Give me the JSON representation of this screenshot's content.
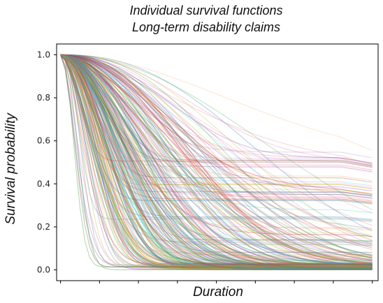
{
  "chart_data": {
    "type": "line",
    "title": "Individual survival functions",
    "subtitle": "Long-term disability claims",
    "xlabel": "Duration",
    "ylabel": "Survival probability",
    "ylim": [
      -0.05,
      1.05
    ],
    "y_ticks": [
      0.0,
      0.2,
      0.4,
      0.6,
      0.8,
      1.0
    ],
    "y_tick_labels": [
      "0.0",
      "0.2",
      "0.4",
      "0.6",
      "0.8",
      "1.0"
    ],
    "x_ticks": [
      0,
      1,
      2,
      3,
      4,
      5,
      6,
      7,
      8
    ],
    "x_tick_labels": [],
    "xlim": [
      -0.1,
      8.15
    ],
    "grid": false,
    "legend": "none",
    "n_curves_approx": 300,
    "series_summary": {
      "x": [
        0,
        0.5,
        1,
        2,
        3,
        4,
        5,
        6,
        7,
        8
      ],
      "median": [
        1.0,
        0.97,
        0.75,
        0.4,
        0.2,
        0.09,
        0.04,
        0.02,
        0.015,
        0.01
      ],
      "upper_envelope": [
        1.0,
        1.0,
        0.97,
        0.92,
        0.84,
        0.76,
        0.71,
        0.67,
        0.65,
        0.6
      ],
      "lower_envelope": [
        1.0,
        0.9,
        0.4,
        0.1,
        0.03,
        0.01,
        0.0,
        0.0,
        0.0,
        0.0
      ]
    },
    "palette": [
      "#1f77b4",
      "#ff7f0e",
      "#2ca02c",
      "#d62728",
      "#9467bd",
      "#8c564b",
      "#e377c2",
      "#7f7f7f",
      "#bcbd22",
      "#17becf"
    ]
  }
}
